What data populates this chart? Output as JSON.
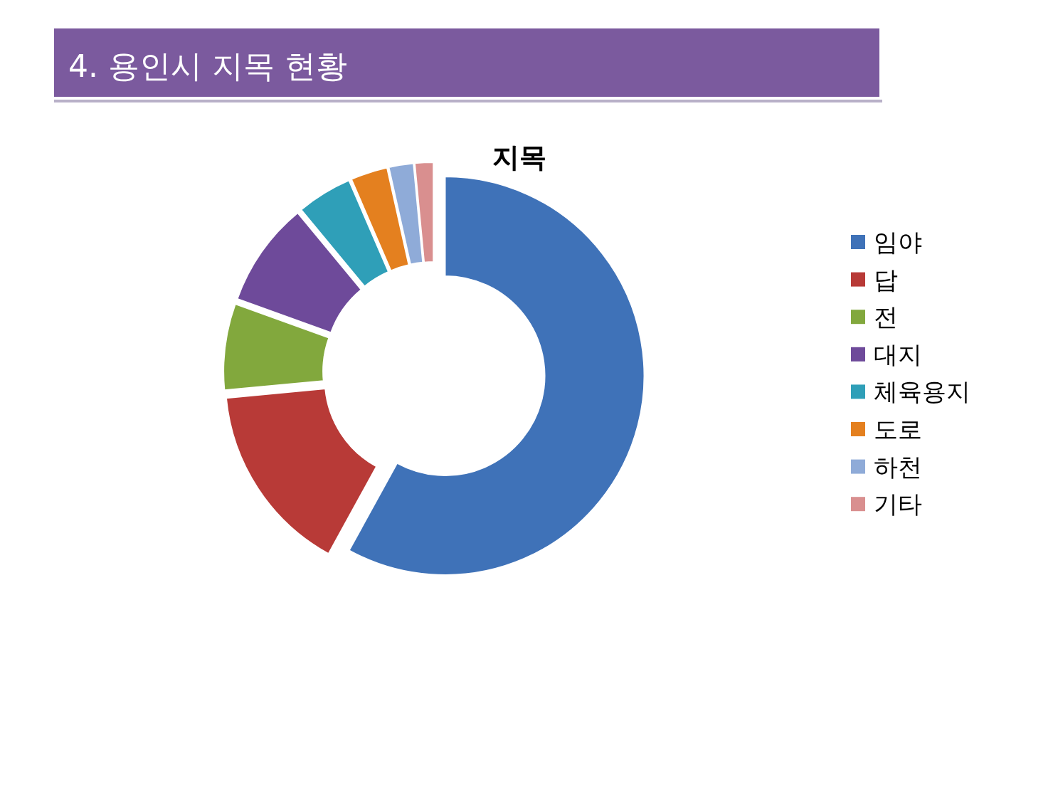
{
  "chart_data": {
    "type": "donut",
    "title": "4. 용인시 지목 현황",
    "subtitle": "지목",
    "categories": [
      "임야",
      "답",
      "전",
      "대지",
      "체육용지",
      "도로",
      "하천",
      "기타"
    ],
    "values": [
      58,
      15.5,
      7,
      8.5,
      4.5,
      3,
      2,
      1.5
    ],
    "colors": [
      "#3f72b8",
      "#b83a37",
      "#82a83d",
      "#6e4a9a",
      "#2f9fb8",
      "#e4801f",
      "#8fabd8",
      "#d98f8f"
    ],
    "legend": "right"
  }
}
